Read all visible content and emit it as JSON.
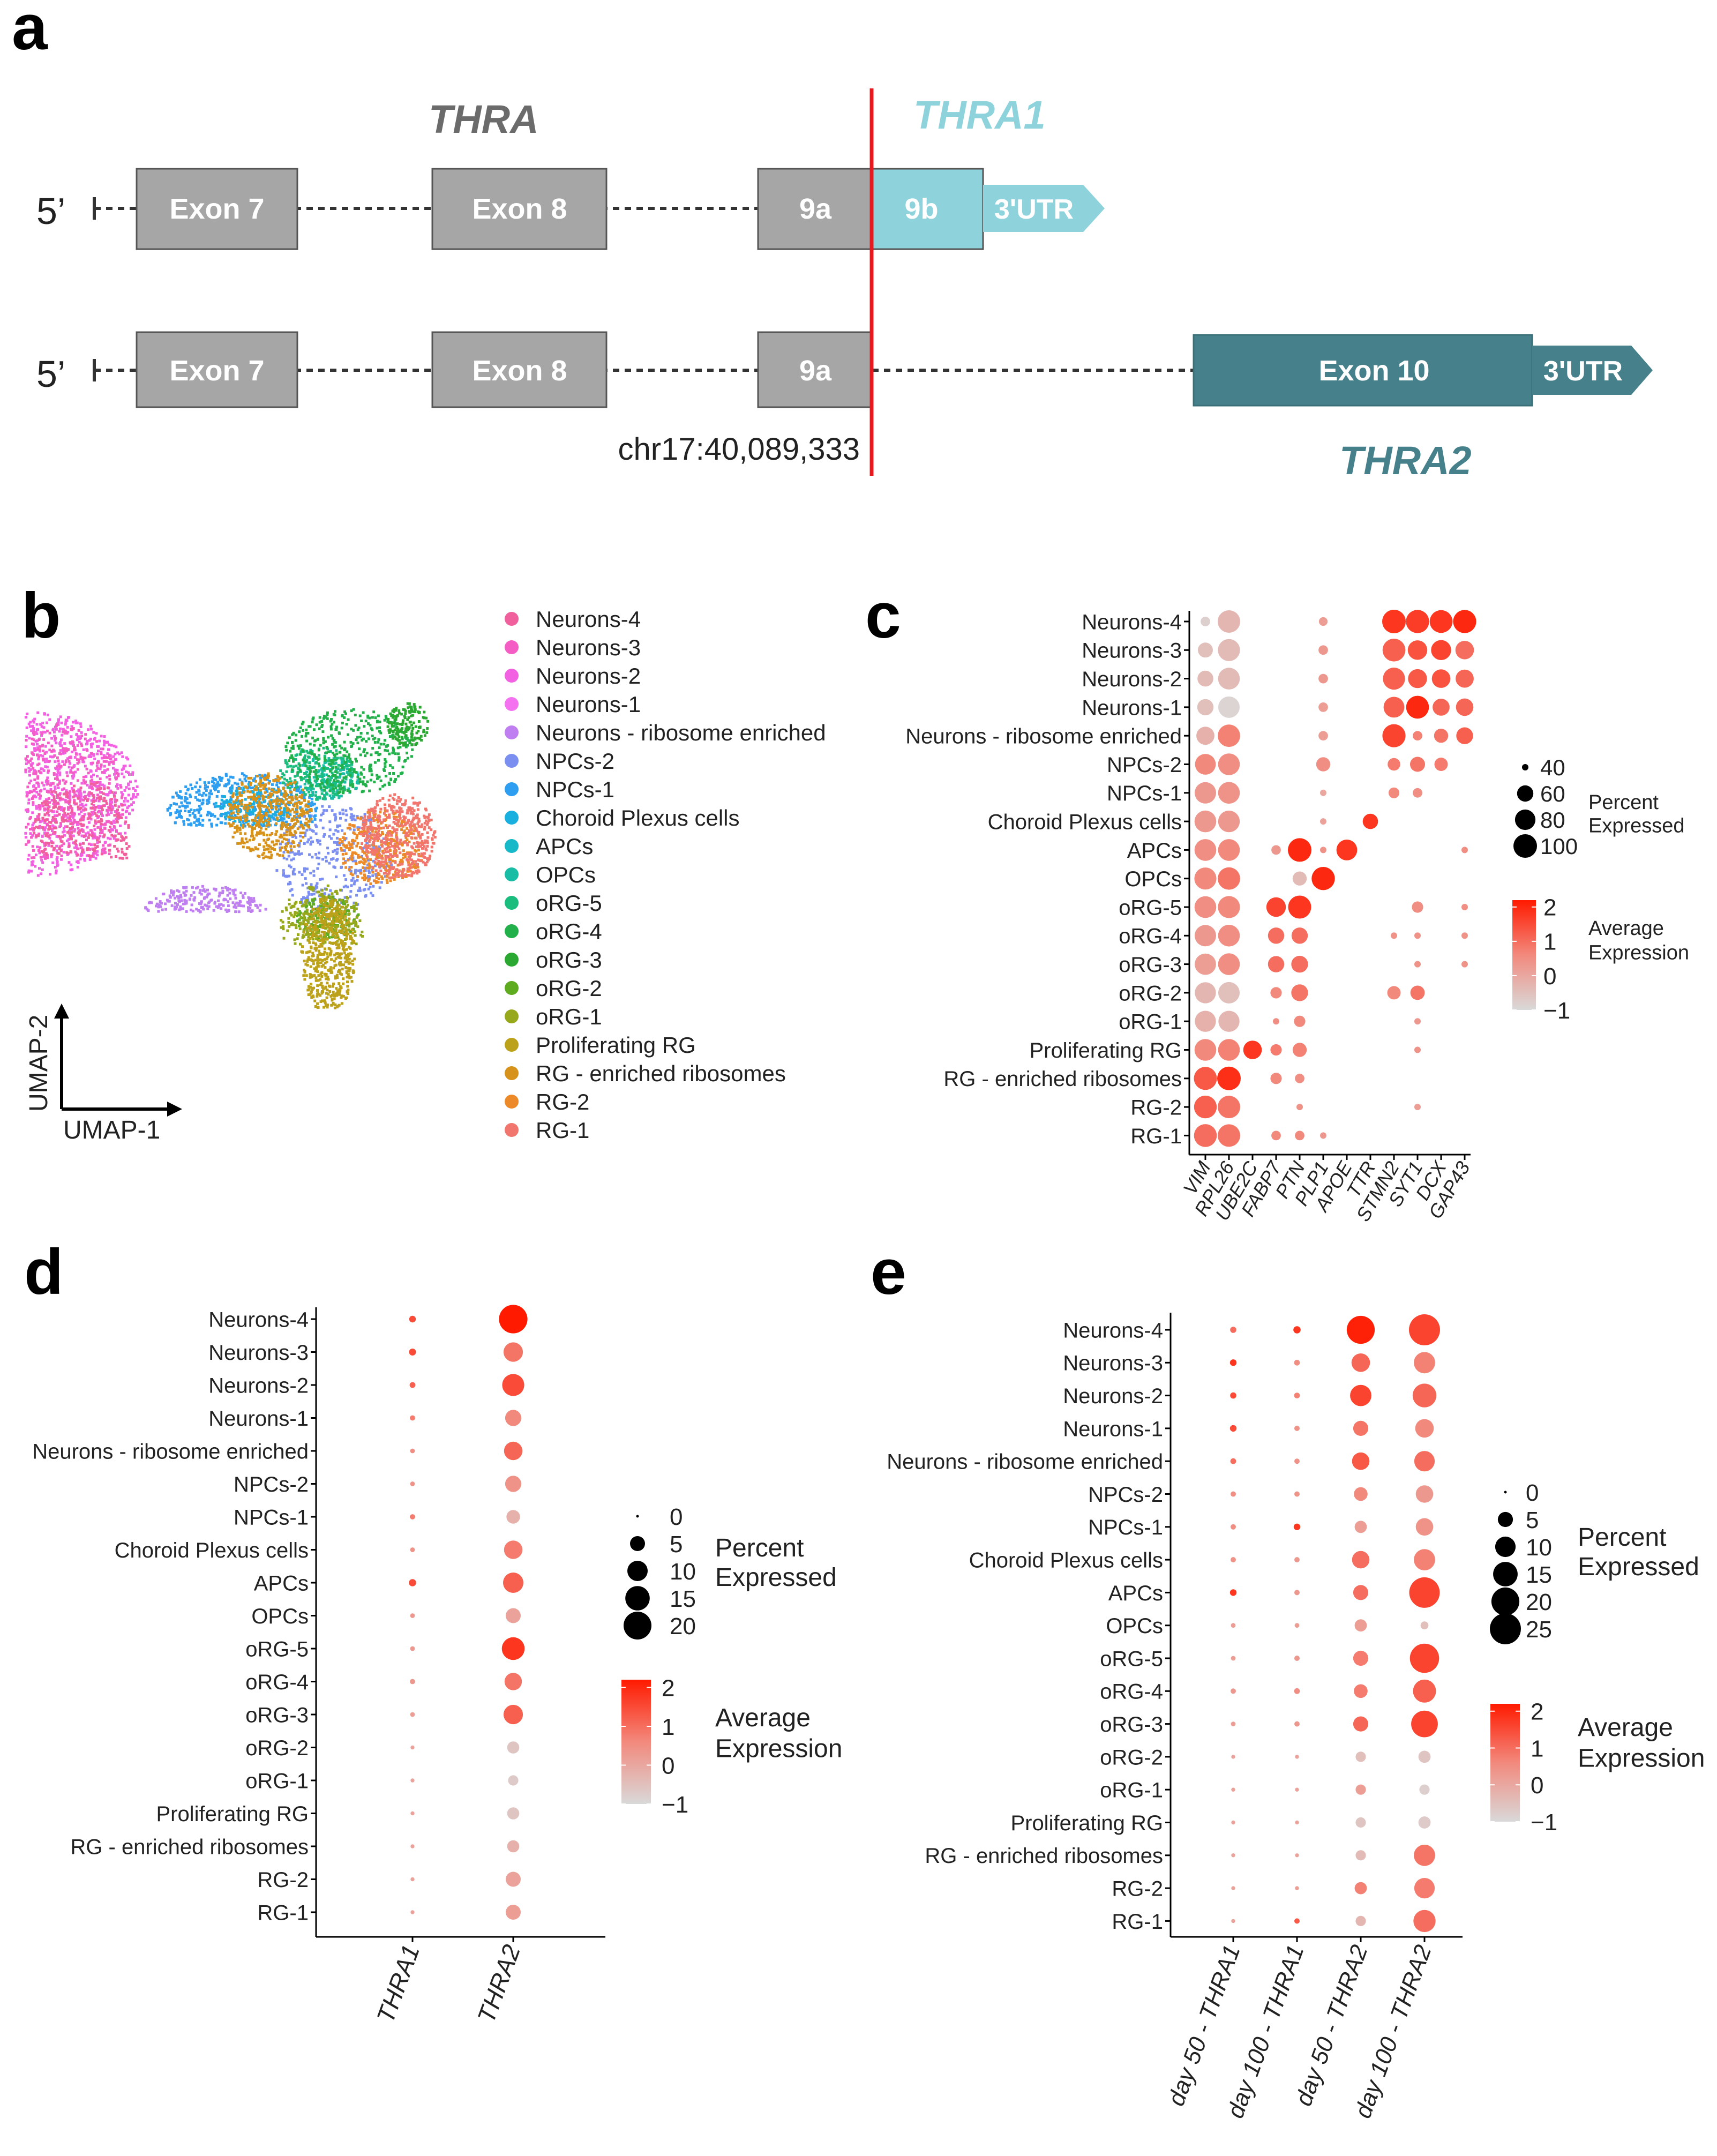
{
  "panel_labels": [
    "a",
    "b",
    "c",
    "d",
    "e"
  ],
  "panel_a": {
    "gene_title": "THRA",
    "isoform1_title": "THRA1",
    "isoform2_title": "THRA2",
    "five_prime": "5’",
    "coordinate": "chr17:40,089,333",
    "transcript1": [
      "Exon 7",
      "Exon 8",
      "9a",
      "9b",
      "3'UTR"
    ],
    "transcript2": [
      "Exon 7",
      "Exon 8",
      "9a",
      "Exon 10",
      "3'UTR"
    ],
    "colors": {
      "exon_grey": "#a6a6a6",
      "thra1": "#8ed3dc",
      "thra2": "#46808b",
      "marker_line": "#e8191e",
      "gene_title": "#6b6b6b"
    }
  },
  "panel_b": {
    "legend": [
      {
        "label": "Neurons-4",
        "color": "#f0609c"
      },
      {
        "label": "Neurons-3",
        "color": "#f45ec4"
      },
      {
        "label": "Neurons-2",
        "color": "#f361e3"
      },
      {
        "label": "Neurons-1",
        "color": "#f472f0"
      },
      {
        "label": "Neurons - ribosome enriched",
        "color": "#c07ff0"
      },
      {
        "label": "NPCs-2",
        "color": "#7b8ff0"
      },
      {
        "label": "NPCs-1",
        "color": "#2e9ef0"
      },
      {
        "label": "Choroid Plexus cells",
        "color": "#19b0e0"
      },
      {
        "label": "APCs",
        "color": "#17b8c8"
      },
      {
        "label": "OPCs",
        "color": "#19bca4"
      },
      {
        "label": "oRG-5",
        "color": "#1bbd7e"
      },
      {
        "label": "oRG-4",
        "color": "#22b04a"
      },
      {
        "label": "oRG-3",
        "color": "#2aa831"
      },
      {
        "label": "oRG-2",
        "color": "#5fab1f"
      },
      {
        "label": "oRG-1",
        "color": "#97a81c"
      },
      {
        "label": "Proliferating RG",
        "color": "#bca11a"
      },
      {
        "label": "RG - enriched ribosomes",
        "color": "#d7921c"
      },
      {
        "label": "RG-2",
        "color": "#ec8a2a"
      },
      {
        "label": "RG-1",
        "color": "#f0766e"
      }
    ],
    "axis_y": "UMAP-2",
    "axis_x": "UMAP-1"
  },
  "chart_data": [
    {
      "panel": "c",
      "type": "scatter",
      "subtype": "dotplot",
      "rows": [
        "Neurons-4",
        "Neurons-3",
        "Neurons-2",
        "Neurons-1",
        "Neurons - ribosome enriched",
        "NPCs-2",
        "NPCs-1",
        "Choroid Plexus cells",
        "APCs",
        "OPCs",
        "oRG-5",
        "oRG-4",
        "oRG-3",
        "oRG-2",
        "oRG-1",
        "Proliferating RG",
        "RG - enriched ribosomes",
        "RG-2",
        "RG-1"
      ],
      "columns": [
        "VIM",
        "RPL26",
        "UBE2C",
        "FABP7",
        "PTN",
        "PLP1",
        "APOE",
        "TTR",
        "STMN2",
        "SYT1",
        "DCX",
        "GAP43"
      ],
      "pct_scale": [
        40,
        100
      ],
      "percent_expressed": [
        [
          42,
          93,
          0,
          0,
          0,
          41,
          0,
          0,
          100,
          98,
          95,
          97
        ],
        [
          55,
          90,
          0,
          0,
          0,
          42,
          0,
          0,
          95,
          75,
          78,
          70
        ],
        [
          58,
          88,
          0,
          0,
          0,
          42,
          0,
          0,
          90,
          72,
          70,
          68
        ],
        [
          60,
          86,
          0,
          0,
          0,
          42,
          0,
          0,
          82,
          95,
          63,
          65
        ],
        [
          68,
          92,
          0,
          0,
          0,
          42,
          0,
          0,
          97,
          42,
          52,
          62
        ],
        [
          82,
          88,
          0,
          0,
          0,
          52,
          0,
          0,
          48,
          55,
          50,
          0
        ],
        [
          86,
          88,
          0,
          0,
          0,
          40,
          0,
          0,
          44,
          42,
          0,
          0
        ],
        [
          88,
          87,
          0,
          0,
          0,
          40,
          0,
          56,
          0,
          0,
          0,
          0
        ],
        [
          88,
          88,
          0,
          42,
          100,
          40,
          82,
          0,
          0,
          0,
          0,
          40
        ],
        [
          90,
          92,
          0,
          0,
          52,
          98,
          0,
          0,
          0,
          0,
          0,
          0
        ],
        [
          88,
          90,
          0,
          75,
          96,
          0,
          0,
          0,
          0,
          45,
          0,
          40
        ],
        [
          86,
          88,
          0,
          60,
          60,
          0,
          0,
          0,
          40,
          40,
          0,
          40
        ],
        [
          85,
          88,
          0,
          60,
          62,
          0,
          0,
          0,
          0,
          40,
          0,
          40
        ],
        [
          84,
          86,
          0,
          45,
          62,
          0,
          0,
          0,
          50,
          53,
          0,
          0
        ],
        [
          84,
          84,
          0,
          40,
          45,
          0,
          0,
          0,
          0,
          40,
          0,
          0
        ],
        [
          88,
          88,
          70,
          45,
          52,
          0,
          0,
          0,
          0,
          40,
          0,
          0
        ],
        [
          96,
          100,
          0,
          45,
          42,
          0,
          0,
          0,
          0,
          0,
          0,
          0
        ],
        [
          94,
          93,
          0,
          0,
          40,
          0,
          0,
          0,
          0,
          40,
          0,
          0
        ],
        [
          95,
          93,
          0,
          42,
          42,
          40,
          0,
          0,
          0,
          0,
          0,
          0
        ]
      ],
      "average_expression": [
        [
          -0.8,
          -0.3,
          0,
          0,
          0,
          0.2,
          0,
          0,
          1.8,
          1.7,
          1.8,
          2.0
        ],
        [
          -0.5,
          -0.4,
          0,
          0,
          0,
          0.3,
          0,
          0,
          1.2,
          1.4,
          1.6,
          1.0
        ],
        [
          -0.4,
          -0.4,
          0,
          0,
          0,
          0.3,
          0,
          0,
          1.2,
          1.3,
          1.4,
          1.1
        ],
        [
          -0.5,
          -0.9,
          0,
          0,
          0,
          0.2,
          0,
          0,
          1.2,
          2.0,
          1.1,
          1.1
        ],
        [
          -0.2,
          0.7,
          0,
          0,
          0,
          0.2,
          0,
          0,
          1.6,
          0.7,
          0.9,
          1.2
        ],
        [
          0.6,
          0.5,
          0,
          0,
          0,
          0.5,
          0,
          0,
          0.8,
          0.9,
          0.8,
          0
        ],
        [
          0.3,
          0.4,
          0,
          0,
          0,
          0.0,
          0,
          0,
          0.6,
          0.5,
          0,
          0
        ],
        [
          0.3,
          0.3,
          0,
          0,
          0,
          0.1,
          0,
          1.8,
          0,
          0,
          0,
          0
        ],
        [
          0.5,
          0.6,
          0,
          0.3,
          2.0,
          0.4,
          1.8,
          0,
          0,
          0,
          0,
          0.5
        ],
        [
          0.6,
          0.9,
          0,
          0,
          -0.4,
          2.0,
          0,
          0,
          0,
          0,
          0,
          0
        ],
        [
          0.5,
          0.6,
          0,
          1.6,
          1.8,
          0,
          0,
          0,
          0,
          0.5,
          0,
          0.5
        ],
        [
          0.3,
          0.5,
          0,
          1.0,
          1.0,
          0,
          0,
          0,
          0.4,
          0.4,
          0,
          0.4
        ],
        [
          0.2,
          0.5,
          0,
          1.0,
          1.0,
          0,
          0,
          0,
          0,
          0.4,
          0,
          0.4
        ],
        [
          -0.3,
          -0.5,
          0,
          0.6,
          0.9,
          0,
          0,
          0,
          0.6,
          0.9,
          0,
          0
        ],
        [
          -0.2,
          -0.3,
          0,
          0.5,
          0.6,
          0,
          0,
          0,
          0,
          0.3,
          0,
          0
        ],
        [
          0.6,
          0.7,
          1.8,
          0.8,
          0.7,
          0,
          0,
          0,
          0,
          0.4,
          0,
          0
        ],
        [
          1.3,
          1.9,
          0,
          0.6,
          0.5,
          0,
          0,
          0,
          0,
          0,
          0,
          0
        ],
        [
          1.2,
          0.9,
          0,
          0,
          0.4,
          0,
          0,
          0,
          0,
          0.2,
          0,
          0
        ],
        [
          1.0,
          0.9,
          0,
          0.6,
          0.6,
          0.3,
          0,
          0,
          0,
          0,
          0,
          0
        ]
      ],
      "size_legend_title": [
        "Percent",
        "Expressed"
      ],
      "size_legend": [
        40,
        60,
        80,
        100
      ],
      "color_legend_title": [
        "Average",
        "Expression"
      ],
      "color_legend": [
        2,
        1,
        0,
        -1
      ],
      "color_range": [
        -1,
        2.2
      ]
    },
    {
      "panel": "d",
      "type": "scatter",
      "subtype": "dotplot",
      "rows": [
        "Neurons-4",
        "Neurons-3",
        "Neurons-2",
        "Neurons-1",
        "Neurons - ribosome enriched",
        "NPCs-2",
        "NPCs-1",
        "Choroid Plexus cells",
        "APCs",
        "OPCs",
        "oRG-5",
        "oRG-4",
        "oRG-3",
        "oRG-2",
        "oRG-1",
        "Proliferating RG",
        "RG - enriched ribosomes",
        "RG-2",
        "RG-1"
      ],
      "columns": [
        "THRA1",
        "THRA2"
      ],
      "pct_scale": [
        0,
        20
      ],
      "percent_expressed": [
        [
          0.6,
          21
        ],
        [
          0.7,
          9
        ],
        [
          0.4,
          12
        ],
        [
          0.3,
          6
        ],
        [
          0.2,
          8
        ],
        [
          0.2,
          6
        ],
        [
          0.3,
          4
        ],
        [
          0.2,
          8
        ],
        [
          0.8,
          10
        ],
        [
          0.2,
          5
        ],
        [
          0.2,
          13
        ],
        [
          0.3,
          7
        ],
        [
          0.2,
          9
        ],
        [
          0.1,
          3
        ],
        [
          0.1,
          2
        ],
        [
          0.1,
          3
        ],
        [
          0.1,
          3
        ],
        [
          0.1,
          5
        ],
        [
          0.1,
          5
        ]
      ],
      "average_expression": [
        [
          1.5,
          2.2
        ],
        [
          1.5,
          0.9
        ],
        [
          1.2,
          1.5
        ],
        [
          0.8,
          0.6
        ],
        [
          0.5,
          1.1
        ],
        [
          0.4,
          0.4
        ],
        [
          0.8,
          -0.2
        ],
        [
          0.4,
          0.8
        ],
        [
          1.5,
          1.2
        ],
        [
          0.3,
          0.1
        ],
        [
          0.3,
          1.8
        ],
        [
          0.3,
          0.9
        ],
        [
          0.2,
          1.2
        ],
        [
          0.1,
          -0.6
        ],
        [
          0.1,
          -0.7
        ],
        [
          0.1,
          -0.6
        ],
        [
          0.1,
          -0.2
        ],
        [
          0.1,
          0.1
        ],
        [
          0.1,
          0.2
        ]
      ],
      "size_legend_title": [
        "Percent",
        "Expressed"
      ],
      "size_legend": [
        0,
        5,
        10,
        15,
        20
      ],
      "color_legend_title": [
        "Average",
        "Expression"
      ],
      "color_legend": [
        2,
        1,
        0,
        -1
      ],
      "color_range": [
        -1,
        2.2
      ]
    },
    {
      "panel": "e",
      "type": "scatter",
      "subtype": "dotplot",
      "rows": [
        "Neurons-4",
        "Neurons-3",
        "Neurons-2",
        "Neurons-1",
        "Neurons - ribosome enriched",
        "NPCs-2",
        "NPCs-1",
        "Choroid Plexus cells",
        "APCs",
        "OPCs",
        "oRG-5",
        "oRG-4",
        "oRG-3",
        "oRG-2",
        "oRG-1",
        "Proliferating RG",
        "RG - enriched ribosomes",
        "RG-2",
        "RG-1"
      ],
      "columns": [
        "day 50 - THRA1",
        "day 100 - THRA1",
        "day 50 - THRA2",
        "day 100 - THRA2"
      ],
      "pct_scale": [
        0,
        25
      ],
      "percent_expressed": [
        [
          0.5,
          0.8,
          20,
          25
        ],
        [
          0.6,
          0.4,
          8,
          11
        ],
        [
          0.5,
          0.4,
          11,
          14
        ],
        [
          0.6,
          0.3,
          5,
          8
        ],
        [
          0.4,
          0.3,
          7,
          10
        ],
        [
          0.3,
          0.3,
          4,
          7
        ],
        [
          0.3,
          0.6,
          3,
          7
        ],
        [
          0.3,
          0.3,
          7,
          11
        ],
        [
          0.6,
          0.3,
          5,
          24
        ],
        [
          0.2,
          0.2,
          3,
          1
        ],
        [
          0.2,
          0.3,
          5,
          22
        ],
        [
          0.3,
          0.4,
          4,
          13
        ],
        [
          0.2,
          0.3,
          5,
          18
        ],
        [
          0.1,
          0.1,
          2,
          3
        ],
        [
          0.1,
          0.1,
          2,
          2
        ],
        [
          0.1,
          0.1,
          2,
          3
        ],
        [
          0.1,
          0.1,
          2,
          11
        ],
        [
          0.1,
          0.1,
          3,
          10
        ],
        [
          0.1,
          0.3,
          2,
          12
        ]
      ],
      "average_expression": [
        [
          1.0,
          1.8,
          2.1,
          1.6
        ],
        [
          1.8,
          0.5,
          1.1,
          0.7
        ],
        [
          1.5,
          0.7,
          1.6,
          1.1
        ],
        [
          1.5,
          0.4,
          0.9,
          0.6
        ],
        [
          1.0,
          0.4,
          1.3,
          1.0
        ],
        [
          0.5,
          0.4,
          0.6,
          0.3
        ],
        [
          0.5,
          1.8,
          0.2,
          0.4
        ],
        [
          0.4,
          0.3,
          1.0,
          0.7
        ],
        [
          1.8,
          0.3,
          1.0,
          1.6
        ],
        [
          0.2,
          0.2,
          0.2,
          -0.5
        ],
        [
          0.2,
          0.3,
          0.8,
          1.6
        ],
        [
          0.3,
          0.5,
          0.8,
          1.2
        ],
        [
          0.2,
          0.3,
          1.1,
          1.6
        ],
        [
          0.1,
          0.1,
          -0.5,
          -0.6
        ],
        [
          0.1,
          0.1,
          0.2,
          -0.8
        ],
        [
          0.1,
          0.1,
          -0.6,
          -0.7
        ],
        [
          0.1,
          0.1,
          -0.4,
          0.9
        ],
        [
          0.1,
          0.2,
          0.7,
          0.8
        ],
        [
          0.1,
          1.3,
          -0.3,
          1.0
        ]
      ],
      "size_legend_title": [
        "Percent",
        "Expressed"
      ],
      "size_legend": [
        0,
        5,
        10,
        15,
        20,
        25
      ],
      "color_legend_title": [
        "Average",
        "Expression"
      ],
      "color_legend": [
        2,
        1,
        0,
        -1
      ],
      "color_range": [
        -1,
        2.2
      ]
    }
  ]
}
